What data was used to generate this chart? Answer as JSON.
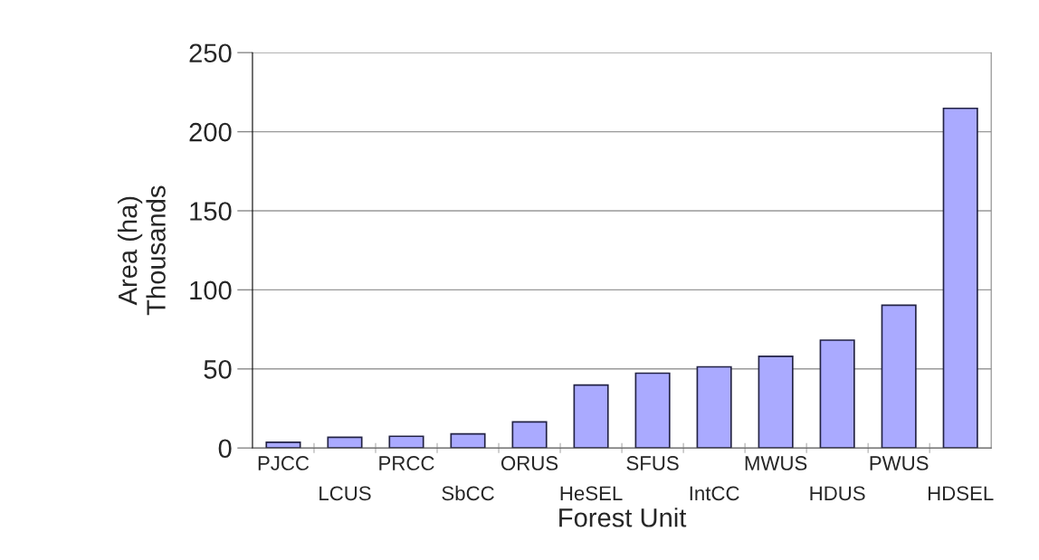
{
  "chart_data": {
    "type": "bar",
    "xlabel": "Forest Unit",
    "ylabel": "Area (ha)\nThousands",
    "categories": [
      "PJCC",
      "LCUS",
      "PRCC",
      "SbCC",
      "ORUS",
      "HeSEL",
      "SFUS",
      "IntCC",
      "MWUS",
      "HDUS",
      "PWUS",
      "HDSEL"
    ],
    "values": [
      3.6,
      6.8,
      7.4,
      8.9,
      16.5,
      39.8,
      47.3,
      51.3,
      58,
      68.2,
      90.3,
      214.8
    ],
    "color": "#aaaaff",
    "ylim": [
      0,
      250
    ],
    "yticks": [
      0,
      50,
      100,
      150,
      200,
      250
    ],
    "grid": "y"
  }
}
